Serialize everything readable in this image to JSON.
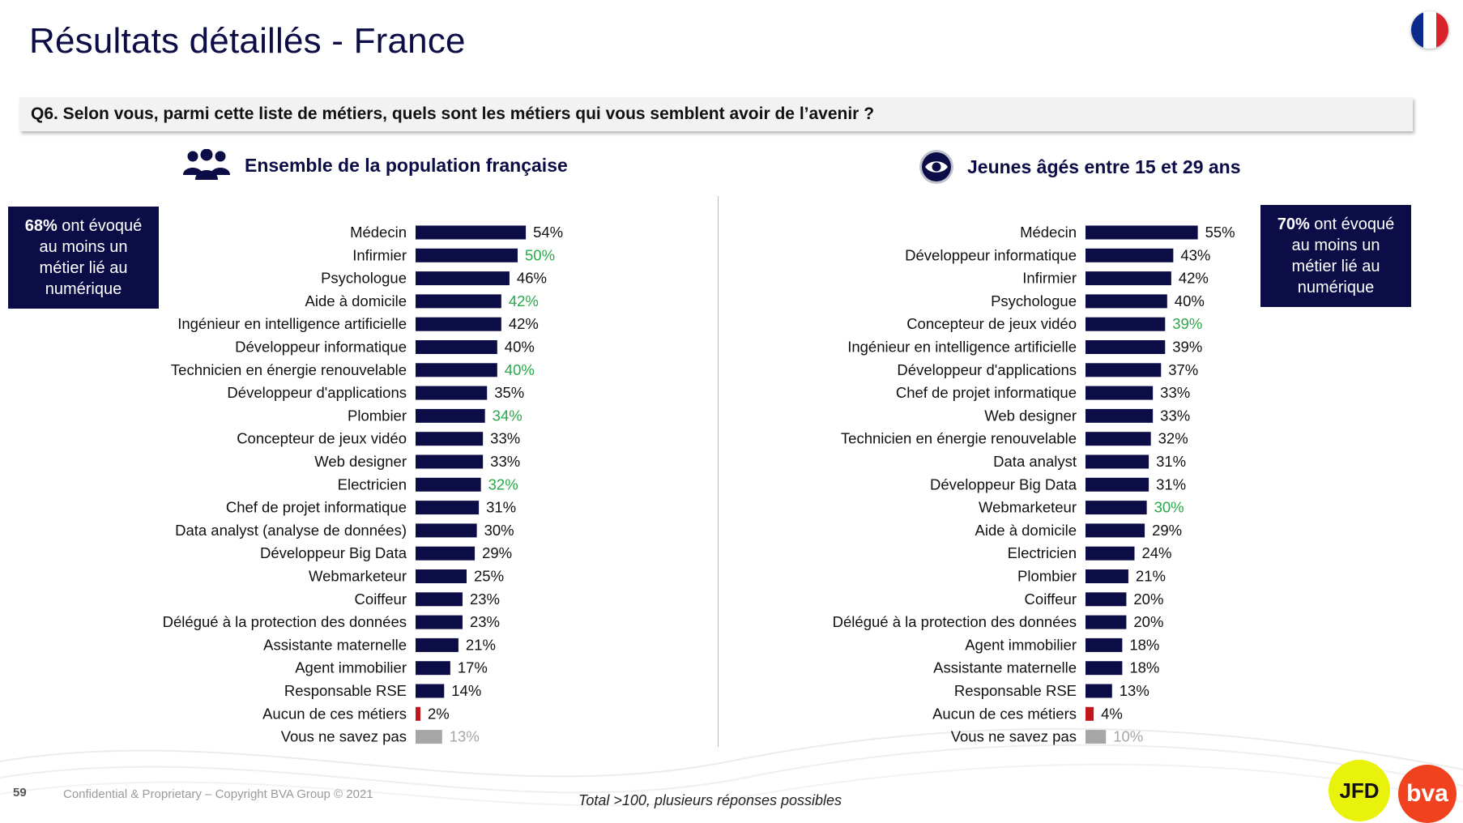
{
  "page": {
    "title": "Résultats détaillés - France",
    "question": "Q6. Selon vous, parmi cette liste de métiers, quels sont les métiers qui vous semblent avoir de l’avenir ?",
    "page_number": "59",
    "copyright": "Confidential & Proprietary – Copyright BVA Group © 2021",
    "footnote": "Total >100, plusieurs réponses possibles",
    "logo_jfd": "JFD",
    "logo_bva": "bva",
    "flag_colors": [
      "#0b2a8c",
      "#ffffff",
      "#d8232a"
    ]
  },
  "left_panel": {
    "heading": "Ensemble de la population française",
    "icon": "people-group-icon",
    "callout": {
      "value": "68%",
      "text_lines": [
        "ont évoqué",
        "au moins un",
        "métier lié au",
        "numérique"
      ]
    }
  },
  "right_panel": {
    "heading": "Jeunes âgés entre 15 et 29 ans",
    "icon": "eye-icon",
    "callout": {
      "value": "70%",
      "text_lines": [
        "ont évoqué",
        "au moins un",
        "métier lié au",
        "numérique"
      ]
    }
  },
  "colors": {
    "bar": "#0c0c46",
    "highlight_text": "#2aa84a",
    "negative_bar": "#c0161c",
    "unknown_bar": "#a6a6a6",
    "label_text": "#111111"
  },
  "chart_data": [
    {
      "type": "bar",
      "orientation": "horizontal",
      "title": "Ensemble de la population française",
      "value_suffix": "%",
      "xlim": [
        0,
        100
      ],
      "categories": [
        "Médecin",
        "Infirmier",
        "Psychologue",
        "Aide à domicile",
        "Ingénieur en intelligence artificielle",
        "Développeur informatique",
        "Technicien en énergie renouvelable",
        "Développeur d'applications",
        "Plombier",
        "Concepteur de jeux vidéo",
        "Web designer",
        "Electricien",
        "Chef de projet informatique",
        "Data analyst (analyse de données)",
        "Développeur Big Data",
        "Webmarketeur",
        "Coiffeur",
        "Délégué à la protection des données",
        "Assistante maternelle",
        "Agent immobilier",
        "Responsable RSE",
        "Aucun de ces métiers",
        "Vous ne savez pas"
      ],
      "values": [
        54,
        50,
        46,
        42,
        42,
        40,
        40,
        35,
        34,
        33,
        33,
        32,
        31,
        30,
        29,
        25,
        23,
        23,
        21,
        17,
        14,
        2,
        13
      ],
      "value_style": [
        "normal",
        "highlight",
        "normal",
        "highlight",
        "normal",
        "normal",
        "highlight",
        "normal",
        "highlight",
        "normal",
        "normal",
        "highlight",
        "normal",
        "normal",
        "normal",
        "normal",
        "normal",
        "normal",
        "normal",
        "normal",
        "normal",
        "negative",
        "unknown"
      ]
    },
    {
      "type": "bar",
      "orientation": "horizontal",
      "title": "Jeunes âgés entre 15 et 29 ans",
      "value_suffix": "%",
      "xlim": [
        0,
        100
      ],
      "categories": [
        "Médecin",
        "Développeur informatique",
        "Infirmier",
        "Psychologue",
        "Concepteur de jeux vidéo",
        "Ingénieur en intelligence artificielle",
        "Développeur d'applications",
        "Chef de projet informatique",
        "Web designer",
        "Technicien en énergie renouvelable",
        "Data analyst",
        "Développeur Big Data",
        "Webmarketeur",
        "Aide à domicile",
        "Electricien",
        "Plombier",
        "Coiffeur",
        "Délégué à la protection des données",
        "Agent immobilier",
        "Assistante maternelle",
        "Responsable RSE",
        "Aucun de ces métiers",
        "Vous ne savez pas"
      ],
      "values": [
        55,
        43,
        42,
        40,
        39,
        39,
        37,
        33,
        33,
        32,
        31,
        31,
        30,
        29,
        24,
        21,
        20,
        20,
        18,
        18,
        13,
        4,
        10
      ],
      "value_style": [
        "normal",
        "normal",
        "normal",
        "normal",
        "highlight",
        "normal",
        "normal",
        "normal",
        "normal",
        "normal",
        "normal",
        "normal",
        "highlight",
        "normal",
        "normal",
        "normal",
        "normal",
        "normal",
        "normal",
        "normal",
        "normal",
        "negative",
        "unknown"
      ]
    }
  ]
}
